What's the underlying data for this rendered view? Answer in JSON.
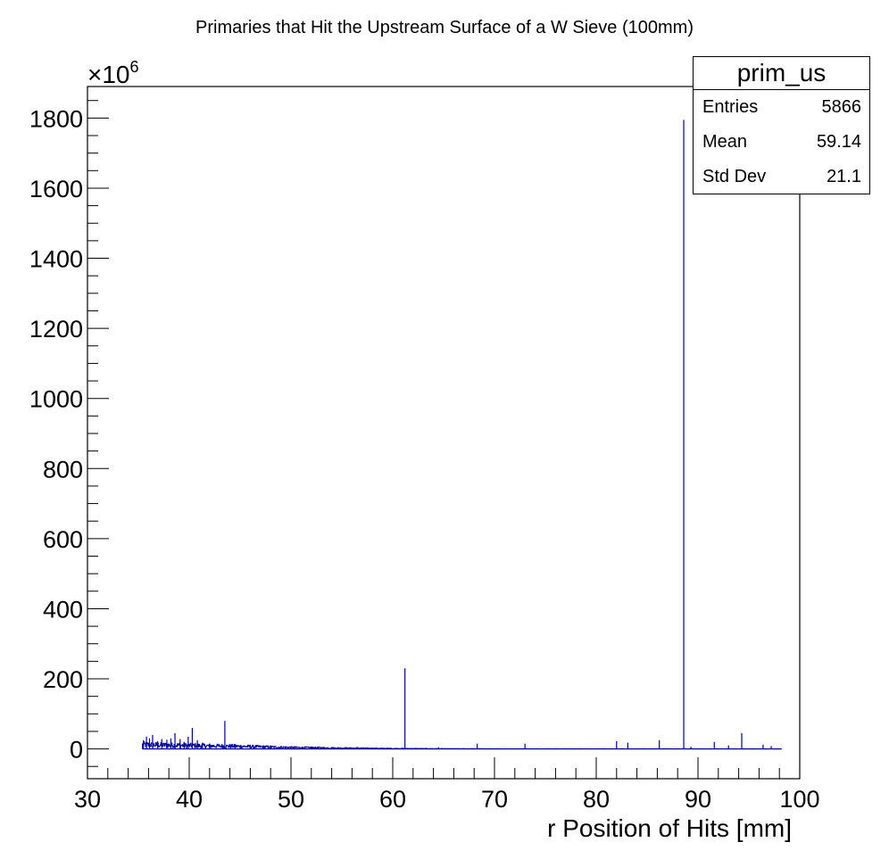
{
  "title": "Primaries that Hit the Upstream Surface of a W Sieve (100mm)",
  "stats_box": {
    "name": "prim_us",
    "rows": [
      {
        "label": "Entries",
        "value": "5866"
      },
      {
        "label": "Mean",
        "value": "59.14"
      },
      {
        "label": "Std Dev",
        "value": "21.1"
      }
    ]
  },
  "chart_data": {
    "type": "bar",
    "title": "Primaries that Hit the Upstream Surface of a W Sieve (100mm)",
    "xlabel": "r Position of Hits [mm]",
    "ylabel": "",
    "y_multiplier": "×10^6",
    "xlim": [
      30,
      100
    ],
    "ylim": [
      -85,
      1890
    ],
    "x_ticks": [
      "30",
      "40",
      "50",
      "60",
      "70",
      "80",
      "90",
      "100"
    ],
    "y_ticks": [
      "0",
      "200",
      "400",
      "600",
      "800",
      "1000",
      "1200",
      "1400",
      "1600",
      "1800"
    ],
    "grid": false,
    "line_color": "#000099",
    "baseline_range": [
      35.4,
      98.2
    ],
    "noise_envelope": [
      {
        "x": 35.4,
        "y": 15
      },
      {
        "x": 40,
        "y": 12
      },
      {
        "x": 45,
        "y": 9
      },
      {
        "x": 50,
        "y": 5
      },
      {
        "x": 55,
        "y": 3
      },
      {
        "x": 60,
        "y": 1.5
      },
      {
        "x": 65,
        "y": 0.8
      },
      {
        "x": 70,
        "y": 0.5
      },
      {
        "x": 98.2,
        "y": 0.3
      }
    ],
    "spikes": [
      {
        "x": 35.5,
        "y": 25
      },
      {
        "x": 35.8,
        "y": 35
      },
      {
        "x": 36.1,
        "y": 30
      },
      {
        "x": 36.4,
        "y": 40
      },
      {
        "x": 36.9,
        "y": 22
      },
      {
        "x": 37.3,
        "y": 28
      },
      {
        "x": 37.8,
        "y": 26
      },
      {
        "x": 38.2,
        "y": 30
      },
      {
        "x": 38.6,
        "y": 45
      },
      {
        "x": 39.1,
        "y": 28
      },
      {
        "x": 39.5,
        "y": 20
      },
      {
        "x": 39.9,
        "y": 35
      },
      {
        "x": 40.3,
        "y": 60
      },
      {
        "x": 40.8,
        "y": 25
      },
      {
        "x": 41.3,
        "y": 18
      },
      {
        "x": 42.0,
        "y": 15
      },
      {
        "x": 43.5,
        "y": 80
      },
      {
        "x": 44.5,
        "y": 14
      },
      {
        "x": 46.0,
        "y": 12
      },
      {
        "x": 48.0,
        "y": 10
      },
      {
        "x": 52.0,
        "y": 7
      },
      {
        "x": 56.5,
        "y": 6
      },
      {
        "x": 61.2,
        "y": 230
      },
      {
        "x": 64.5,
        "y": 5
      },
      {
        "x": 68.3,
        "y": 15
      },
      {
        "x": 73.0,
        "y": 15
      },
      {
        "x": 82.0,
        "y": 22
      },
      {
        "x": 83.1,
        "y": 18
      },
      {
        "x": 86.2,
        "y": 25
      },
      {
        "x": 88.6,
        "y": 1795
      },
      {
        "x": 89.3,
        "y": 6
      },
      {
        "x": 91.6,
        "y": 20
      },
      {
        "x": 93.0,
        "y": 10
      },
      {
        "x": 94.3,
        "y": 45
      },
      {
        "x": 96.4,
        "y": 12
      },
      {
        "x": 97.2,
        "y": 8
      }
    ]
  }
}
